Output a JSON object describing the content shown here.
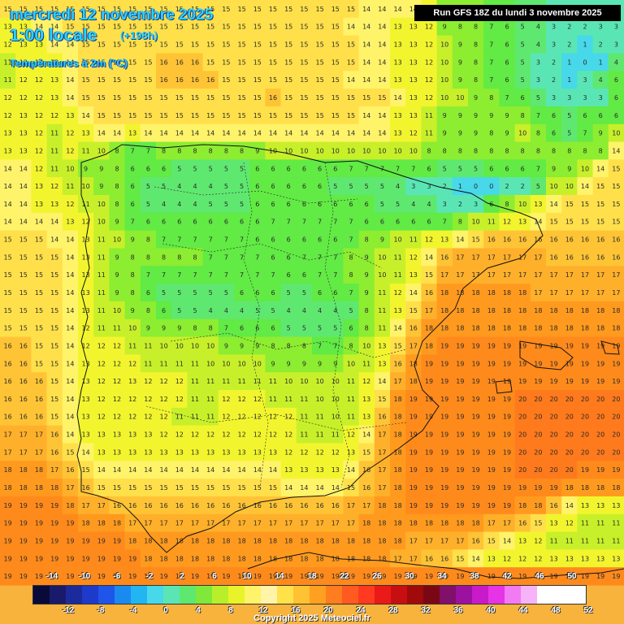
{
  "header": {
    "date": "mercredi 12 novembre 2025",
    "time": "1:00 locale",
    "lead": "(+198h)",
    "variable": "Températures à 2m (°C)",
    "run": "Run GFS 18Z du lundi 3 novembre 2025"
  },
  "legend": {
    "top_labels": [
      "-14",
      "-10",
      "-6",
      "-2",
      "2",
      "6",
      "10",
      "14",
      "18",
      "22",
      "26",
      "30",
      "34",
      "38",
      "42",
      "46",
      "50"
    ],
    "bottom_labels": [
      "-12",
      "-8",
      "-4",
      "0",
      "4",
      "8",
      "12",
      "16",
      "20",
      "24",
      "28",
      "32",
      "36",
      "40",
      "44",
      "48",
      "52"
    ],
    "colors": [
      "#0a0a3a",
      "#1a1a6a",
      "#1c2b9c",
      "#1e3acb",
      "#1f55e8",
      "#1b8aef",
      "#21b6f2",
      "#47d8e9",
      "#5ae6b4",
      "#5fe870",
      "#7fe83a",
      "#b8ef2a",
      "#e9f32a",
      "#fff36a",
      "#fff4a8",
      "#ffe14a",
      "#ffc233",
      "#ffa020",
      "#ff7d1f",
      "#ff5a20",
      "#ff3a20",
      "#e91a18",
      "#c70f12",
      "#a00a0a",
      "#7a0814",
      "#80106a",
      "#9c12a0",
      "#c81ac8",
      "#e533e5",
      "#f27af2",
      "#f7b3f7",
      "#ffffff",
      "#ffffff",
      "#ffffff"
    ]
  },
  "field": {
    "values": [
      [
        15,
        15,
        15,
        15,
        15,
        15,
        15,
        15,
        15,
        15,
        15,
        15,
        15,
        15,
        15,
        15,
        15,
        15,
        15,
        15,
        15,
        15,
        15,
        14,
        14,
        14,
        14,
        13,
        9,
        9,
        8,
        7,
        6,
        5,
        4,
        3,
        3,
        3,
        3,
        3
      ],
      [
        13,
        13,
        14,
        14,
        15,
        15,
        15,
        15,
        15,
        15,
        15,
        15,
        15,
        15,
        15,
        15,
        15,
        15,
        15,
        15,
        15,
        15,
        14,
        14,
        14,
        13,
        13,
        12,
        9,
        8,
        8,
        7,
        6,
        5,
        4,
        3,
        2,
        2,
        3,
        3
      ],
      [
        12,
        13,
        13,
        14,
        14,
        15,
        15,
        15,
        15,
        15,
        15,
        15,
        15,
        15,
        15,
        15,
        15,
        15,
        15,
        15,
        15,
        15,
        15,
        14,
        14,
        13,
        13,
        12,
        10,
        9,
        8,
        7,
        6,
        5,
        4,
        3,
        2,
        1,
        2,
        3
      ],
      [
        11,
        12,
        13,
        13,
        14,
        15,
        15,
        15,
        15,
        15,
        16,
        16,
        16,
        15,
        15,
        15,
        15,
        15,
        15,
        15,
        15,
        15,
        15,
        14,
        14,
        13,
        13,
        12,
        10,
        9,
        8,
        7,
        6,
        5,
        3,
        2,
        1,
        0,
        1,
        4
      ],
      [
        11,
        12,
        12,
        13,
        14,
        15,
        15,
        15,
        15,
        15,
        16,
        16,
        16,
        16,
        15,
        15,
        15,
        15,
        15,
        15,
        15,
        15,
        14,
        14,
        14,
        13,
        13,
        12,
        10,
        9,
        8,
        7,
        6,
        5,
        3,
        2,
        1,
        3,
        4,
        6
      ],
      [
        12,
        12,
        12,
        13,
        14,
        15,
        15,
        15,
        15,
        15,
        15,
        15,
        15,
        15,
        15,
        15,
        15,
        16,
        15,
        15,
        15,
        15,
        15,
        15,
        15,
        14,
        13,
        12,
        10,
        10,
        9,
        8,
        7,
        6,
        5,
        3,
        3,
        3,
        3,
        6
      ],
      [
        12,
        13,
        12,
        12,
        13,
        14,
        15,
        15,
        15,
        15,
        15,
        15,
        15,
        15,
        15,
        15,
        15,
        15,
        15,
        15,
        15,
        15,
        15,
        14,
        14,
        13,
        13,
        11,
        9,
        9,
        9,
        9,
        9,
        8,
        7,
        6,
        5,
        6,
        6,
        6
      ],
      [
        13,
        13,
        12,
        11,
        12,
        13,
        14,
        14,
        13,
        14,
        14,
        14,
        14,
        14,
        14,
        14,
        14,
        14,
        14,
        14,
        14,
        14,
        14,
        14,
        14,
        13,
        12,
        11,
        9,
        9,
        9,
        8,
        9,
        10,
        8,
        6,
        5,
        7,
        9,
        10
      ],
      [
        13,
        13,
        12,
        11,
        12,
        11,
        10,
        8,
        7,
        7,
        8,
        8,
        8,
        8,
        8,
        8,
        9,
        10,
        10,
        10,
        10,
        10,
        10,
        10,
        10,
        10,
        10,
        8,
        8,
        8,
        8,
        8,
        8,
        8,
        8,
        8,
        8,
        8,
        8,
        14
      ],
      [
        14,
        14,
        12,
        11,
        10,
        9,
        9,
        8,
        6,
        6,
        6,
        5,
        5,
        5,
        5,
        5,
        6,
        6,
        6,
        6,
        6,
        6,
        7,
        7,
        7,
        7,
        7,
        6,
        5,
        5,
        5,
        6,
        6,
        6,
        7,
        9,
        9,
        10,
        14,
        15
      ],
      [
        14,
        14,
        13,
        12,
        11,
        10,
        9,
        8,
        6,
        5,
        5,
        4,
        4,
        4,
        5,
        5,
        6,
        6,
        6,
        6,
        6,
        5,
        5,
        5,
        5,
        4,
        3,
        3,
        2,
        1,
        0,
        0,
        2,
        2,
        5,
        10,
        10,
        14,
        15,
        15
      ],
      [
        14,
        14,
        13,
        13,
        12,
        11,
        10,
        8,
        6,
        5,
        4,
        4,
        4,
        5,
        5,
        5,
        6,
        6,
        6,
        6,
        6,
        6,
        6,
        6,
        5,
        5,
        4,
        4,
        3,
        2,
        3,
        6,
        8,
        10,
        13,
        14,
        15,
        15,
        15,
        15
      ],
      [
        14,
        14,
        14,
        14,
        13,
        12,
        10,
        9,
        7,
        6,
        6,
        6,
        6,
        6,
        6,
        6,
        6,
        7,
        7,
        7,
        7,
        7,
        7,
        6,
        6,
        6,
        6,
        6,
        7,
        8,
        10,
        11,
        12,
        13,
        14,
        15,
        15,
        15,
        15,
        15
      ],
      [
        15,
        15,
        15,
        14,
        14,
        13,
        11,
        10,
        9,
        8,
        7,
        7,
        7,
        7,
        7,
        7,
        6,
        6,
        6,
        6,
        6,
        6,
        7,
        8,
        9,
        10,
        11,
        12,
        13,
        14,
        15,
        16,
        16,
        16,
        16,
        16,
        16,
        16,
        16,
        16
      ],
      [
        15,
        15,
        15,
        15,
        14,
        13,
        11,
        9,
        8,
        8,
        8,
        8,
        8,
        7,
        7,
        7,
        7,
        6,
        6,
        7,
        7,
        7,
        8,
        9,
        10,
        11,
        12,
        14,
        16,
        17,
        17,
        17,
        17,
        17,
        17,
        16,
        16,
        16,
        16,
        16
      ],
      [
        15,
        15,
        15,
        15,
        14,
        13,
        11,
        9,
        8,
        7,
        7,
        7,
        7,
        7,
        7,
        7,
        7,
        7,
        6,
        6,
        7,
        7,
        8,
        9,
        10,
        11,
        13,
        15,
        17,
        17,
        17,
        17,
        17,
        17,
        17,
        17,
        17,
        17,
        17,
        17
      ],
      [
        15,
        15,
        15,
        15,
        14,
        13,
        11,
        9,
        8,
        6,
        5,
        5,
        5,
        5,
        5,
        6,
        6,
        6,
        5,
        5,
        6,
        6,
        7,
        9,
        11,
        12,
        14,
        16,
        18,
        18,
        18,
        18,
        18,
        18,
        17,
        17,
        17,
        17,
        17,
        17
      ],
      [
        15,
        15,
        15,
        15,
        14,
        13,
        11,
        10,
        9,
        8,
        6,
        5,
        5,
        4,
        4,
        4,
        5,
        5,
        4,
        4,
        4,
        4,
        5,
        8,
        11,
        13,
        15,
        17,
        18,
        18,
        18,
        18,
        18,
        18,
        18,
        18,
        18,
        18,
        18,
        18
      ],
      [
        15,
        15,
        15,
        15,
        14,
        12,
        11,
        11,
        10,
        9,
        9,
        9,
        8,
        8,
        7,
        6,
        6,
        6,
        5,
        5,
        5,
        5,
        6,
        8,
        11,
        14,
        16,
        18,
        18,
        18,
        18,
        18,
        18,
        18,
        18,
        18,
        18,
        18,
        18,
        18
      ],
      [
        16,
        16,
        15,
        15,
        14,
        12,
        12,
        12,
        11,
        11,
        10,
        10,
        10,
        10,
        9,
        9,
        9,
        8,
        8,
        8,
        7,
        7,
        8,
        10,
        13,
        15,
        17,
        18,
        19,
        19,
        19,
        19,
        19,
        19,
        19,
        19,
        19,
        19,
        19,
        19
      ],
      [
        16,
        16,
        15,
        15,
        14,
        13,
        12,
        12,
        12,
        11,
        11,
        11,
        11,
        10,
        10,
        10,
        10,
        9,
        9,
        9,
        9,
        9,
        10,
        11,
        13,
        16,
        18,
        19,
        19,
        19,
        19,
        19,
        19,
        19,
        19,
        19,
        19,
        19,
        19,
        19
      ],
      [
        16,
        16,
        16,
        15,
        14,
        13,
        12,
        12,
        13,
        12,
        12,
        12,
        11,
        11,
        11,
        11,
        11,
        11,
        10,
        10,
        10,
        10,
        11,
        12,
        14,
        17,
        18,
        19,
        19,
        19,
        19,
        19,
        19,
        19,
        19,
        19,
        19,
        19,
        19,
        19
      ],
      [
        16,
        16,
        16,
        15,
        14,
        13,
        12,
        12,
        12,
        12,
        12,
        12,
        11,
        11,
        12,
        12,
        12,
        11,
        11,
        11,
        10,
        10,
        11,
        13,
        15,
        18,
        19,
        19,
        19,
        19,
        19,
        19,
        19,
        20,
        20,
        20,
        20,
        20,
        20,
        20
      ],
      [
        16,
        16,
        16,
        15,
        14,
        13,
        12,
        12,
        12,
        12,
        12,
        11,
        11,
        11,
        12,
        12,
        12,
        12,
        12,
        11,
        11,
        10,
        11,
        13,
        16,
        18,
        19,
        19,
        19,
        19,
        19,
        19,
        19,
        20,
        20,
        20,
        20,
        20,
        20,
        20
      ],
      [
        17,
        17,
        17,
        16,
        14,
        13,
        13,
        13,
        13,
        13,
        12,
        12,
        12,
        12,
        12,
        12,
        12,
        12,
        12,
        11,
        11,
        11,
        12,
        14,
        17,
        18,
        19,
        19,
        19,
        19,
        19,
        19,
        19,
        20,
        20,
        20,
        20,
        20,
        20,
        20
      ],
      [
        17,
        17,
        17,
        16,
        15,
        14,
        13,
        13,
        13,
        13,
        13,
        13,
        13,
        13,
        13,
        13,
        13,
        13,
        12,
        12,
        12,
        12,
        13,
        15,
        17,
        18,
        19,
        19,
        19,
        19,
        19,
        19,
        19,
        20,
        20,
        20,
        20,
        20,
        20,
        20
      ],
      [
        18,
        18,
        18,
        17,
        16,
        15,
        14,
        14,
        14,
        14,
        14,
        14,
        14,
        14,
        14,
        14,
        14,
        14,
        13,
        13,
        13,
        13,
        14,
        16,
        17,
        18,
        19,
        19,
        19,
        19,
        19,
        19,
        19,
        20,
        20,
        20,
        20,
        19,
        19,
        19
      ],
      [
        18,
        18,
        18,
        18,
        17,
        16,
        15,
        15,
        15,
        15,
        15,
        15,
        15,
        15,
        15,
        15,
        15,
        15,
        14,
        14,
        14,
        14,
        15,
        16,
        17,
        18,
        19,
        19,
        19,
        19,
        19,
        19,
        19,
        19,
        19,
        19,
        18,
        18,
        18,
        18
      ],
      [
        19,
        19,
        19,
        19,
        18,
        17,
        17,
        16,
        16,
        16,
        16,
        16,
        16,
        16,
        16,
        16,
        16,
        16,
        16,
        16,
        16,
        16,
        17,
        17,
        18,
        18,
        19,
        19,
        19,
        19,
        19,
        19,
        19,
        18,
        18,
        16,
        14,
        13,
        13,
        13
      ],
      [
        19,
        19,
        19,
        19,
        19,
        18,
        18,
        18,
        17,
        17,
        17,
        17,
        17,
        17,
        17,
        17,
        17,
        17,
        17,
        17,
        17,
        17,
        17,
        18,
        18,
        18,
        18,
        18,
        18,
        18,
        18,
        17,
        17,
        16,
        15,
        13,
        12,
        11,
        11,
        11
      ],
      [
        19,
        19,
        19,
        19,
        19,
        19,
        19,
        19,
        18,
        18,
        18,
        18,
        18,
        18,
        18,
        18,
        18,
        18,
        18,
        18,
        18,
        18,
        18,
        18,
        18,
        18,
        17,
        17,
        17,
        17,
        16,
        15,
        14,
        13,
        12,
        11,
        11,
        11,
        11,
        11
      ],
      [
        19,
        19,
        19,
        19,
        19,
        19,
        19,
        19,
        19,
        18,
        18,
        18,
        18,
        18,
        18,
        18,
        18,
        18,
        18,
        18,
        18,
        18,
        18,
        18,
        18,
        17,
        17,
        16,
        16,
        15,
        14,
        13,
        12,
        12,
        12,
        13,
        13,
        13,
        13,
        13
      ],
      [
        19,
        19,
        19,
        19,
        19,
        19,
        19,
        19,
        19,
        19,
        19,
        19,
        19,
        19,
        19,
        19,
        19,
        19,
        19,
        19,
        19,
        19,
        19,
        19,
        19,
        19,
        19,
        19,
        19,
        19,
        19,
        19,
        19,
        19,
        19,
        19,
        19,
        19,
        19,
        19
      ]
    ]
  },
  "copyright": "Copyright 2025 Meteociel.fr"
}
